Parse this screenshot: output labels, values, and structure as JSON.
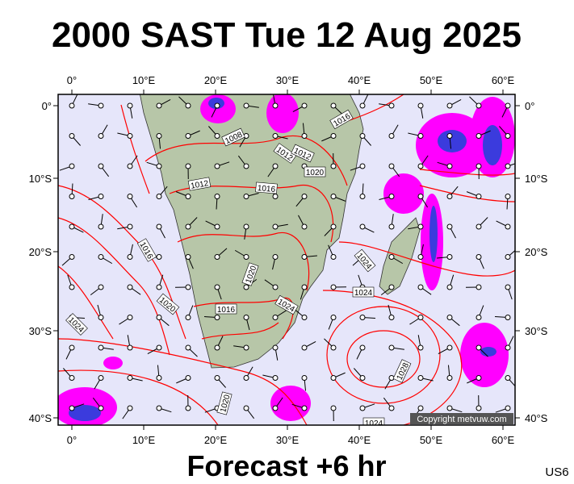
{
  "title": "2000 SAST Tue 12 Aug 2025",
  "footer": "Forecast +6 hr",
  "code": "US6",
  "copyright": "Copyright metvuw.com",
  "lon_labels": [
    "0°",
    "10°E",
    "20°E",
    "30°E",
    "40°E",
    "50°E",
    "60°E"
  ],
  "lat_labels": [
    "0°",
    "10°S",
    "20°S",
    "30°S",
    "40°S"
  ],
  "isobar_labels": [
    "1008",
    "1012",
    "1016",
    "1012",
    "1012",
    "1020",
    "1016",
    "1016",
    "1020",
    "1024",
    "1016",
    "1020",
    "1024",
    "1024",
    "1024",
    "1028",
    "1020",
    "1024"
  ]
}
